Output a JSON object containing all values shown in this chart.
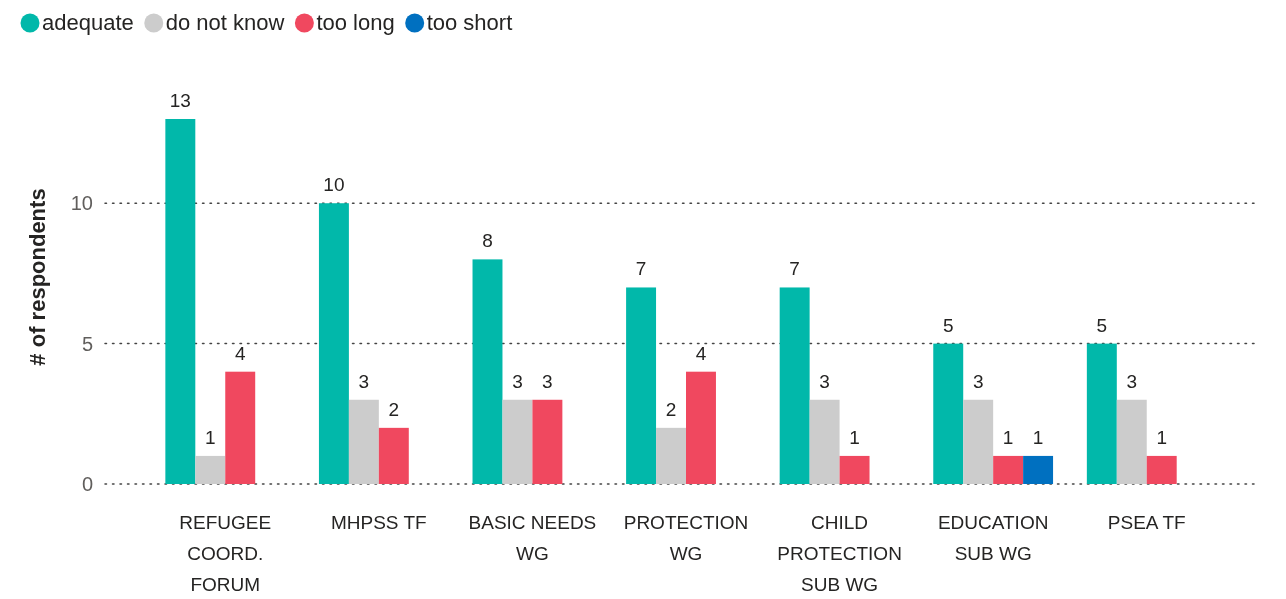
{
  "chart_data": {
    "type": "bar",
    "ylabel": "# of respondents",
    "categories": [
      "REFUGEE COORD. FORUM",
      "MHPSS TF",
      "BASIC NEEDS WG",
      "PROTECTION WG",
      "CHILD PROTECTION SUB WG",
      "EDUCATION SUB WG",
      "PSEA TF"
    ],
    "series": [
      {
        "name": "adequate",
        "color": "#01b8aa",
        "values": [
          13,
          10,
          8,
          7,
          7,
          5,
          5
        ]
      },
      {
        "name": "do not know",
        "color": "#cccccc",
        "values": [
          1,
          3,
          3,
          2,
          3,
          3,
          3
        ]
      },
      {
        "name": "too long",
        "color": "#f0485f",
        "values": [
          4,
          2,
          3,
          4,
          1,
          1,
          1
        ]
      },
      {
        "name": "too short",
        "color": "#0070c0",
        "values": [
          null,
          null,
          null,
          null,
          null,
          1,
          null
        ]
      }
    ],
    "ylim": [
      0,
      13
    ],
    "yticks": [
      0,
      5,
      10
    ],
    "grid": "y",
    "legend": "top left",
    "data_labels": true
  }
}
